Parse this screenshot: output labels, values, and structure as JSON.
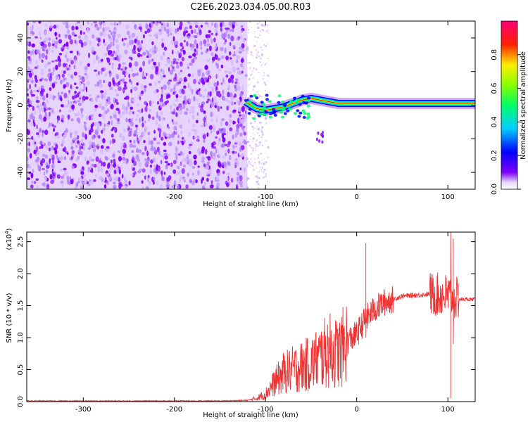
{
  "title": "C2E6.2023.034.05.00.R03",
  "chart_data": [
    {
      "type": "heatmap",
      "xlabel": "Height of straight line (km)",
      "ylabel": "Frequency (Hz)",
      "xlim": [
        -362,
        130
      ],
      "ylim": [
        -50,
        50
      ],
      "x_ticks": [
        -300,
        -200,
        -100,
        0,
        100
      ],
      "y_ticks": [
        -40,
        -20,
        0,
        20,
        40
      ],
      "colorbar": {
        "label": "Normalized spectral amplitude",
        "range": [
          0,
          1
        ],
        "ticks": [
          "0.0",
          "0.2",
          "0.4",
          "0.6",
          "0.8"
        ],
        "colors": [
          "#ffffff",
          "#7f00ff",
          "#0000ff",
          "#00ffff",
          "#00ff00",
          "#ffff00",
          "#ff0000",
          "#ff00aa"
        ]
      },
      "noise_region": {
        "x_range": [
          -362,
          -120
        ],
        "color": "#7f00ff"
      },
      "ridge": [
        {
          "x": -122,
          "f": 2
        },
        {
          "x": -110,
          "f": -2
        },
        {
          "x": -100,
          "f": -3
        },
        {
          "x": -90,
          "f": -2
        },
        {
          "x": -80,
          "f": -1
        },
        {
          "x": -70,
          "f": 1
        },
        {
          "x": -60,
          "f": 3
        },
        {
          "x": -50,
          "f": 4
        },
        {
          "x": -40,
          "f": 3
        },
        {
          "x": -30,
          "f": 2
        },
        {
          "x": -20,
          "f": 1
        },
        {
          "x": -10,
          "f": 1
        },
        {
          "x": 0,
          "f": 1
        },
        {
          "x": 20,
          "f": 1
        },
        {
          "x": 40,
          "f": 1
        },
        {
          "x": 60,
          "f": 1
        },
        {
          "x": 80,
          "f": 1
        },
        {
          "x": 100,
          "f": 1
        },
        {
          "x": 130,
          "f": 1
        }
      ]
    },
    {
      "type": "line",
      "xlabel": "Height of straight line (km)",
      "ylabel": "SNR (10 * v/v)",
      "multiplier_label": "(x10",
      "multiplier_exp": "4",
      "multiplier_close": ")",
      "xlim": [
        -362,
        130
      ],
      "ylim": [
        0,
        2.65
      ],
      "x_ticks": [
        -300,
        -200,
        -100,
        0,
        100
      ],
      "y_ticks": [
        0.0,
        0.5,
        1.0,
        1.5,
        2.0,
        2.5
      ],
      "y_tick_labels": [
        "0.0",
        "0.5",
        "1.0",
        "1.5",
        "2.0",
        "2.5"
      ],
      "color": "#ee3333",
      "series": [
        {
          "x": [
            -362,
            -300,
            -250,
            -200,
            -150,
            -120,
            -110,
            -100,
            -90,
            -80,
            -70,
            -60,
            -50,
            -40,
            -30,
            -20,
            -10,
            0,
            10,
            20,
            30,
            40,
            50,
            60,
            70,
            80,
            90,
            100,
            105,
            110,
            120,
            130
          ],
          "values": [
            0.01,
            0.01,
            0.01,
            0.01,
            0.01,
            0.02,
            0.05,
            0.12,
            0.3,
            0.45,
            0.5,
            0.55,
            0.6,
            0.7,
            0.8,
            0.75,
            0.95,
            1.05,
            1.3,
            1.45,
            1.55,
            1.6,
            1.65,
            1.66,
            1.67,
            1.68,
            1.67,
            1.66,
            1.64,
            1.6,
            1.6,
            1.6
          ]
        }
      ],
      "spikes": [
        {
          "x": 10,
          "values": [
            2.48,
            1.0
          ]
        },
        {
          "x": 103,
          "values": [
            0.05,
            2.65
          ]
        },
        {
          "x": 106,
          "values": [
            2.55,
            0.9
          ]
        }
      ]
    }
  ]
}
